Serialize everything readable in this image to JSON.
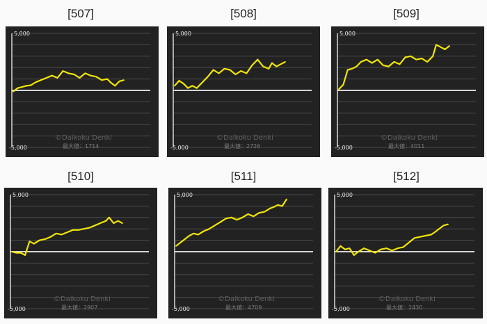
{
  "chart_data": [
    {
      "type": "line",
      "title": "[507]",
      "y_ticks": [
        "5,000",
        "-5,000"
      ],
      "ylim": [
        -5000,
        5000
      ],
      "watermark": "©Daikoku Denki",
      "max_label": "最大値：1714",
      "color": "#f2e600",
      "grid": true,
      "x": [
        0,
        0.04,
        0.08,
        0.12,
        0.16,
        0.2,
        0.25,
        0.3,
        0.35,
        0.4,
        0.45,
        0.5,
        0.55,
        0.6,
        0.65,
        0.7,
        0.75,
        0.8,
        0.85,
        0.88,
        0.92,
        0.96,
        1.0
      ],
      "y": [
        -100,
        200,
        300,
        400,
        450,
        700,
        900,
        1100,
        1300,
        1100,
        1700,
        1500,
        1400,
        1100,
        1500,
        1300,
        1200,
        900,
        1000,
        700,
        400,
        800,
        900
      ]
    },
    {
      "type": "line",
      "title": "[508]",
      "y_ticks": [
        "5,000",
        "-5,000"
      ],
      "ylim": [
        -5000,
        5000
      ],
      "watermark": "©Daikoku Denki",
      "max_label": "最大値：2726",
      "color": "#f2e600",
      "grid": true,
      "x": [
        0,
        0.04,
        0.08,
        0.12,
        0.16,
        0.2,
        0.25,
        0.3,
        0.35,
        0.4,
        0.45,
        0.5,
        0.55,
        0.6,
        0.65,
        0.7,
        0.75,
        0.8,
        0.85,
        0.88,
        0.92,
        0.96,
        1.0
      ],
      "y": [
        400,
        850,
        600,
        200,
        400,
        200,
        700,
        1200,
        1800,
        1500,
        1900,
        1800,
        1400,
        1700,
        1500,
        2200,
        2700,
        2100,
        1900,
        2400,
        2100,
        2300,
        2500
      ]
    },
    {
      "type": "line",
      "title": "[509]",
      "y_ticks": [
        "5,000",
        "-5,000"
      ],
      "ylim": [
        -5000,
        5000
      ],
      "watermark": "©Daikoku Denki",
      "max_label": "最大値：4011",
      "color": "#f2e600",
      "grid": true,
      "x": [
        0,
        0.04,
        0.08,
        0.12,
        0.16,
        0.2,
        0.25,
        0.3,
        0.35,
        0.4,
        0.45,
        0.5,
        0.55,
        0.6,
        0.65,
        0.7,
        0.75,
        0.8,
        0.85,
        0.88,
        0.92,
        0.96,
        1.0
      ],
      "y": [
        100,
        500,
        1800,
        1900,
        2100,
        2500,
        2700,
        2400,
        2700,
        2200,
        2100,
        2500,
        2300,
        2900,
        3000,
        2700,
        2800,
        2500,
        3000,
        4000,
        3800,
        3600,
        3900
      ]
    },
    {
      "type": "line",
      "title": "[510]",
      "y_ticks": [
        "5,000",
        "-5,000"
      ],
      "ylim": [
        -5000,
        5000
      ],
      "watermark": "©Daikoku Denki",
      "max_label": "最大値：2907",
      "color": "#f2e600",
      "grid": true,
      "x": [
        0,
        0.04,
        0.08,
        0.12,
        0.16,
        0.2,
        0.25,
        0.3,
        0.35,
        0.4,
        0.45,
        0.5,
        0.55,
        0.6,
        0.65,
        0.7,
        0.75,
        0.8,
        0.85,
        0.88,
        0.92,
        0.96,
        1.0
      ],
      "y": [
        0,
        -100,
        -100,
        -300,
        900,
        700,
        1000,
        1100,
        1300,
        1600,
        1500,
        1700,
        1900,
        1900,
        2000,
        2100,
        2300,
        2500,
        2700,
        3000,
        2500,
        2700,
        2500
      ]
    },
    {
      "type": "line",
      "title": "[511]",
      "y_ticks": [
        "5,000",
        "-5,000"
      ],
      "ylim": [
        -5000,
        5000
      ],
      "watermark": "©Daikoku Denki",
      "max_label": "最大値：4709",
      "color": "#f2e600",
      "grid": true,
      "x": [
        0,
        0.04,
        0.08,
        0.12,
        0.16,
        0.2,
        0.25,
        0.3,
        0.35,
        0.4,
        0.45,
        0.5,
        0.55,
        0.6,
        0.65,
        0.7,
        0.75,
        0.8,
        0.85,
        0.88,
        0.92,
        0.96,
        1.0
      ],
      "y": [
        500,
        800,
        1100,
        1400,
        1600,
        1500,
        1800,
        2000,
        2300,
        2600,
        2900,
        3000,
        2800,
        3000,
        3300,
        3100,
        3400,
        3500,
        3800,
        3900,
        4100,
        4000,
        4600
      ]
    },
    {
      "type": "line",
      "title": "[512]",
      "y_ticks": [
        "5,000",
        "-5,000"
      ],
      "ylim": [
        -5000,
        5000
      ],
      "watermark": "©Daikoku Denki",
      "max_label": "最大値：2430",
      "color": "#f2e600",
      "grid": true,
      "x": [
        0,
        0.04,
        0.08,
        0.12,
        0.16,
        0.2,
        0.25,
        0.3,
        0.35,
        0.4,
        0.45,
        0.5,
        0.55,
        0.6,
        0.65,
        0.7,
        0.75,
        0.8,
        0.85,
        0.88,
        0.92,
        0.96,
        1.0
      ],
      "y": [
        0,
        500,
        200,
        300,
        -300,
        0,
        300,
        100,
        -100,
        200,
        300,
        100,
        300,
        400,
        800,
        1200,
        1300,
        1400,
        1500,
        1700,
        2000,
        2300,
        2400
      ]
    }
  ]
}
